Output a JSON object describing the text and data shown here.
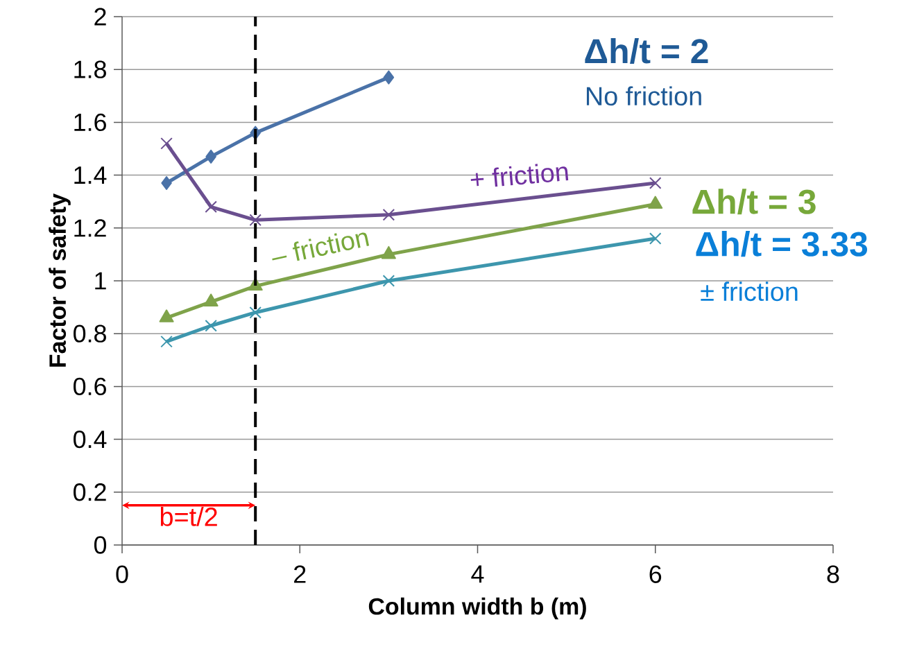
{
  "chart_data": {
    "type": "line",
    "xlabel": "Column width b   (m)",
    "ylabel": "Factor of safety",
    "xlim": [
      0,
      8
    ],
    "ylim": [
      0,
      2
    ],
    "xticks": [
      0,
      2,
      4,
      6,
      8
    ],
    "yticks": [
      0,
      0.2,
      0.4,
      0.6,
      0.8,
      1,
      1.2,
      1.4,
      1.6,
      1.8,
      2
    ],
    "grid": "y",
    "x": [
      0.5,
      1,
      1.5,
      3,
      6
    ],
    "series": [
      {
        "color": "#4a72a8",
        "marker": "diamond",
        "values": [
          1.37,
          1.47,
          1.56,
          1.77,
          null
        ]
      },
      {
        "color": "#6a4f8f",
        "marker": "cross",
        "values": [
          1.52,
          1.28,
          1.23,
          1.25,
          1.37
        ]
      },
      {
        "color": "#7fa34a",
        "marker": "triangle",
        "values": [
          0.86,
          0.92,
          0.98,
          1.1,
          1.29
        ]
      },
      {
        "color": "#3d96ad",
        "marker": "cross",
        "values": [
          0.77,
          0.83,
          0.88,
          1.0,
          1.16
        ]
      }
    ],
    "ref_lines": [
      {
        "axis": "x",
        "value": 1.5,
        "color": "#000000",
        "line_style": "dashed"
      }
    ],
    "annotations": [
      "**Δh/t = 2**",
      "No friction",
      "+ friction",
      "**Δh/t = 3**",
      "**Δh/t = 3.33**",
      "± friction",
      "– friction",
      "b=t/2"
    ]
  }
}
